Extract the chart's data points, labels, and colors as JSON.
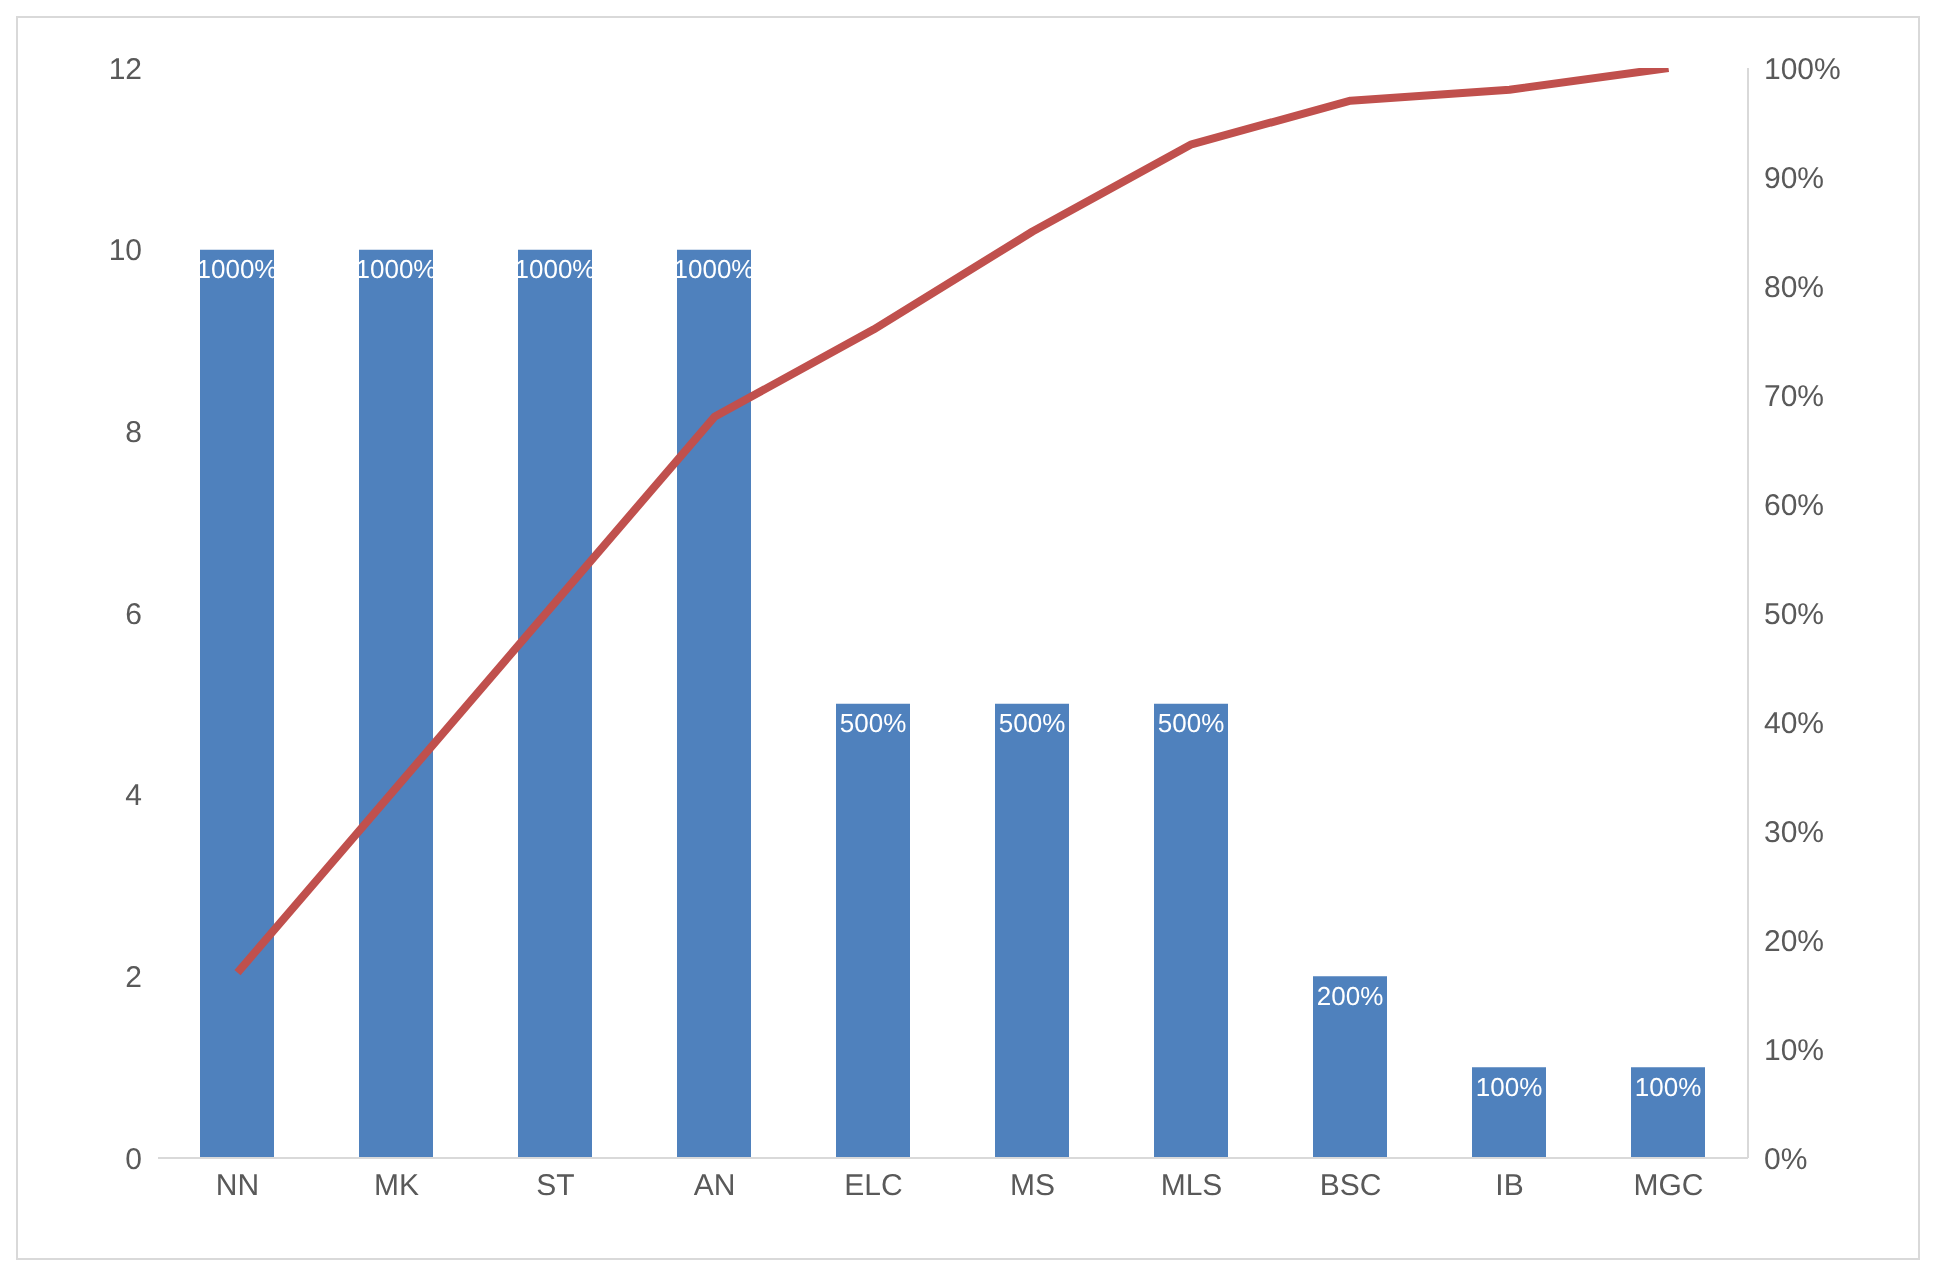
{
  "chart_data": {
    "type": "bar",
    "categories": [
      "NN",
      "MK",
      "ST",
      "AN",
      "ELC",
      "MS",
      "MLS",
      "BSC",
      "IB",
      "MGC"
    ],
    "series": [
      {
        "color": "#4f81bd",
        "values": [
          10,
          10,
          10,
          10,
          5,
          5,
          5,
          2,
          1,
          1
        ],
        "value_labels": [
          "1000%",
          "1000%",
          "1000%",
          "1000%",
          "500%",
          "500%",
          "500%",
          "200%",
          "100%",
          "100%"
        ]
      },
      {
        "type": "line",
        "axis": "y2",
        "color": "#c0504d",
        "values": [
          17,
          34,
          51,
          68,
          76,
          85,
          93,
          97,
          98,
          100
        ]
      }
    ],
    "ylim": [
      0,
      12
    ],
    "yticks": [
      0,
      2,
      4,
      6,
      8,
      10,
      12
    ],
    "y2lim": [
      0,
      100
    ],
    "y2ticks": [
      {
        "value": 0,
        "label": "0%"
      },
      {
        "value": 10,
        "label": "10%"
      },
      {
        "value": 20,
        "label": "20%"
      },
      {
        "value": 30,
        "label": "30%"
      },
      {
        "value": 40,
        "label": "40%"
      },
      {
        "value": 50,
        "label": "50%"
      },
      {
        "value": 60,
        "label": "60%"
      },
      {
        "value": 70,
        "label": "70%"
      },
      {
        "value": 80,
        "label": "80%"
      },
      {
        "value": 90,
        "label": "90%"
      },
      {
        "value": 100,
        "label": "100%"
      }
    ],
    "grid": false,
    "legend": false,
    "marker": "none",
    "line_style": "solid"
  }
}
